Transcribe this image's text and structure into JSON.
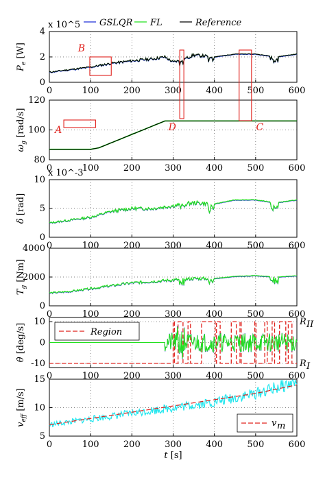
{
  "figure": {
    "legend_top": [
      "GSLQR",
      "FL",
      "Reference"
    ],
    "colors": {
      "gslqr": "#1f2fd6",
      "fl": "#22e01e",
      "reference": "#000000",
      "region": "#e0201b",
      "veff": "#1fe6ee",
      "vm": "#e0201b",
      "box": "#e0201b",
      "grid": "#555555"
    },
    "boxes": [
      "A",
      "B",
      "C",
      "D"
    ],
    "x_label": "t [s]",
    "r_labels": [
      "R_II",
      "R_I"
    ],
    "panels": [
      {
        "id": "pe",
        "ylabel_base": "P",
        "ylabel_sub": "e",
        "ylabel_unit": "[W]",
        "exponent": "x 10^5",
        "ylim": [
          0,
          4
        ],
        "yticks": [
          "0",
          "2",
          "4"
        ],
        "ytick_vals": [
          0,
          2,
          4
        ]
      },
      {
        "id": "omega",
        "ylabel_base": "ω",
        "ylabel_sub": "g",
        "ylabel_unit": "[rad/s]",
        "ylim": [
          80,
          120
        ],
        "yticks": [
          "80",
          "100",
          "120"
        ],
        "ytick_vals": [
          80,
          100,
          120
        ]
      },
      {
        "id": "delta",
        "ylabel_base": "δ",
        "ylabel_sub": "",
        "ylabel_unit": "[rad]",
        "exponent": "x 10^-3",
        "ylim": [
          0,
          10
        ],
        "yticks": [
          "0",
          "5",
          "10"
        ],
        "ytick_vals": [
          0,
          5,
          10
        ]
      },
      {
        "id": "tg",
        "ylabel_base": "T",
        "ylabel_sub": "g",
        "ylabel_unit": "[Nm]",
        "ylim": [
          0,
          4000
        ],
        "yticks": [
          "0",
          "2000",
          "4000"
        ],
        "ytick_vals": [
          0,
          2000,
          4000
        ]
      },
      {
        "id": "thetadot",
        "ylabel_base": "θ̇",
        "ylabel_sub": "",
        "ylabel_unit": "[deg/s]",
        "ylim": [
          -12,
          12
        ],
        "yticks": [
          "-10",
          "0",
          "10"
        ],
        "ytick_vals": [
          -10,
          0,
          10
        ],
        "legend": "Region"
      },
      {
        "id": "veff",
        "ylabel_base": "v",
        "ylabel_sub": "eff",
        "ylabel_unit": "[m/s]",
        "ylim": [
          5,
          15
        ],
        "yticks": [
          "5",
          "10",
          "15"
        ],
        "ytick_vals": [
          5,
          10,
          15
        ],
        "legend": "v_m"
      }
    ],
    "xticks": [
      "0",
      "100",
      "200",
      "300",
      "400",
      "500",
      "600"
    ],
    "xtick_vals": [
      0,
      100,
      200,
      300,
      400,
      500,
      600
    ]
  },
  "chart_data": [
    {
      "type": "line",
      "title": "",
      "xlabel": "",
      "ylabel": "P_e [W]",
      "xlim": [
        0,
        600
      ],
      "ylim": [
        0,
        400000
      ],
      "series": [
        {
          "name": "GSLQR"
        },
        {
          "name": "FL"
        },
        {
          "name": "Reference"
        }
      ],
      "x": [
        0,
        50,
        100,
        150,
        200,
        250,
        280,
        300,
        320,
        350,
        400,
        450,
        500,
        550,
        600
      ],
      "values": [
        80000,
        100000,
        120000,
        150000,
        170000,
        185000,
        200000,
        160000,
        175000,
        215000,
        200000,
        223000,
        223000,
        200000,
        223000
      ],
      "annotations": [
        {
          "label": "B",
          "x": [
            100,
            150
          ]
        },
        {
          "label": "D",
          "x": [
            318,
            325
          ]
        },
        {
          "label": "C",
          "x": [
            462,
            490
          ]
        }
      ]
    },
    {
      "type": "line",
      "title": "",
      "xlabel": "",
      "ylabel": "ω_g [rad/s]",
      "xlim": [
        0,
        600
      ],
      "ylim": [
        80,
        120
      ],
      "series": [
        {
          "name": "GSLQR"
        },
        {
          "name": "FL"
        },
        {
          "name": "Reference"
        }
      ],
      "x": [
        0,
        100,
        120,
        280,
        600
      ],
      "values": [
        87,
        87,
        88,
        106,
        106
      ],
      "annotations": [
        {
          "label": "A",
          "x": [
            35,
            112
          ]
        }
      ]
    },
    {
      "type": "line",
      "title": "",
      "xlabel": "",
      "ylabel": "δ [rad]",
      "xlim": [
        0,
        600
      ],
      "ylim": [
        0,
        0.01
      ],
      "series": [
        {
          "name": "GSLQR"
        },
        {
          "name": "FL"
        },
        {
          "name": "Reference"
        }
      ],
      "x": [
        0,
        50,
        100,
        150,
        200,
        250,
        300,
        350,
        400,
        450,
        500,
        550,
        600
      ],
      "values": [
        0.0025,
        0.003,
        0.0035,
        0.0045,
        0.005,
        0.005,
        0.0055,
        0.006,
        0.0058,
        0.0065,
        0.0065,
        0.006,
        0.0065
      ]
    },
    {
      "type": "line",
      "title": "",
      "xlabel": "",
      "ylabel": "T_g [Nm]",
      "xlim": [
        0,
        600
      ],
      "ylim": [
        0,
        4000
      ],
      "series": [
        {
          "name": "GSLQR"
        },
        {
          "name": "FL"
        },
        {
          "name": "Reference"
        }
      ],
      "x": [
        0,
        50,
        100,
        150,
        200,
        250,
        300,
        350,
        400,
        450,
        500,
        550,
        600
      ],
      "values": [
        900,
        1000,
        1200,
        1400,
        1600,
        1700,
        1800,
        1900,
        1900,
        2050,
        2100,
        2000,
        2100
      ]
    },
    {
      "type": "line",
      "title": "",
      "xlabel": "",
      "ylabel": "θ̇ [deg/s]",
      "xlim": [
        0,
        600
      ],
      "ylim": [
        -12,
        12
      ],
      "series": [
        {
          "name": "GSLQR"
        },
        {
          "name": "FL"
        },
        {
          "name": "Region"
        }
      ],
      "x": [
        0,
        280,
        600
      ],
      "values": [
        0,
        0,
        0
      ]
    },
    {
      "type": "line",
      "title": "",
      "xlabel": "t [s]",
      "ylabel": "v_eff [m/s]",
      "xlim": [
        0,
        600
      ],
      "ylim": [
        5,
        15
      ],
      "series": [
        {
          "name": "v_eff"
        },
        {
          "name": "v_m"
        }
      ],
      "x": [
        0,
        100,
        200,
        300,
        400,
        500,
        600
      ],
      "values": [
        7,
        8,
        9,
        10,
        11,
        12.5,
        14.5
      ],
      "vm": [
        7,
        8.1,
        9.2,
        10.3,
        11.4,
        12.5,
        14
      ]
    }
  ]
}
